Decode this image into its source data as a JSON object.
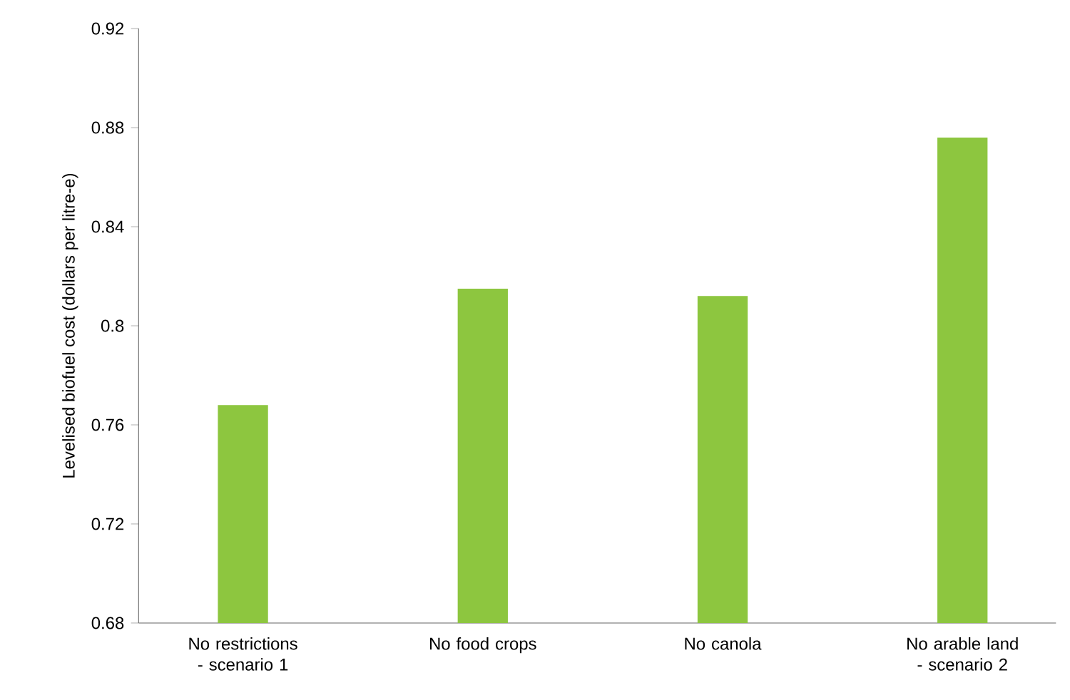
{
  "chart_data": {
    "type": "bar",
    "ylabel": "Levelised biofuel cost (dollars per litre-e)",
    "categories": [
      "No restrictions - scenario 1",
      "No food crops",
      "No canola",
      "No arable land - scenario 2"
    ],
    "values": [
      0.768,
      0.815,
      0.812,
      0.876
    ],
    "color": "#8dc63f",
    "ylim": [
      0.68,
      0.92
    ],
    "yticks": [
      0.68,
      0.72,
      0.76,
      0.8,
      0.84,
      0.88,
      0.92
    ],
    "grid": false
  }
}
